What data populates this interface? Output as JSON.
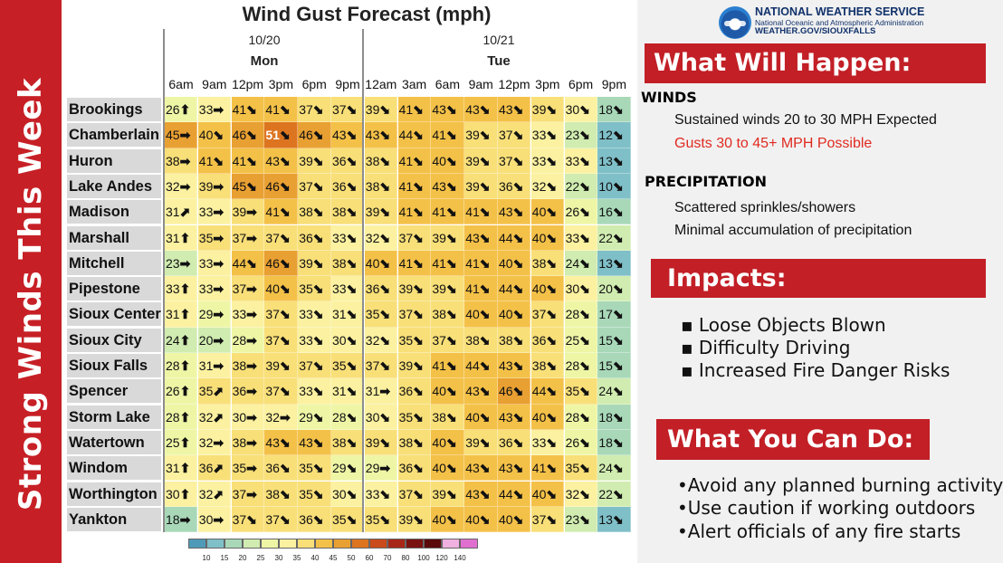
{
  "side_title": "Strong Winds This Week",
  "chart_data": {
    "type": "heatmap",
    "title": "Wind Gust Forecast (mph)",
    "days": [
      {
        "date": "10/20",
        "day": "Mon"
      },
      {
        "date": "10/21",
        "day": "Tue"
      }
    ],
    "times": [
      "6am",
      "9am",
      "12pm",
      "3pm",
      "6pm",
      "9pm",
      "12am",
      "3am",
      "6am",
      "9am",
      "12pm",
      "3pm",
      "6pm",
      "9pm"
    ],
    "rows": [
      {
        "name": "Brookings",
        "values": [
          26,
          33,
          41,
          41,
          37,
          37,
          39,
          41,
          43,
          43,
          43,
          39,
          30,
          18
        ],
        "dirs": [
          "N",
          "E",
          "SE",
          "SE",
          "SE",
          "SE",
          "SE",
          "SE",
          "SE",
          "SE",
          "SE",
          "SE",
          "SE",
          "SE"
        ]
      },
      {
        "name": "Chamberlain",
        "values": [
          45,
          40,
          46,
          51,
          46,
          43,
          43,
          44,
          41,
          39,
          37,
          33,
          23,
          12
        ],
        "dirs": [
          "E",
          "SE",
          "SE",
          "SE",
          "SE",
          "SE",
          "SE",
          "SE",
          "SE",
          "SE",
          "SE",
          "SE",
          "SE",
          "SE"
        ]
      },
      {
        "name": "Huron",
        "values": [
          38,
          41,
          41,
          43,
          39,
          36,
          38,
          41,
          40,
          39,
          37,
          33,
          33,
          13
        ],
        "dirs": [
          "E",
          "SE",
          "SE",
          "SE",
          "SE",
          "SE",
          "SE",
          "SE",
          "SE",
          "SE",
          "SE",
          "SE",
          "SE",
          "SE"
        ]
      },
      {
        "name": "Lake Andes",
        "values": [
          32,
          39,
          45,
          46,
          37,
          36,
          38,
          41,
          43,
          39,
          36,
          32,
          22,
          10
        ],
        "dirs": [
          "E",
          "E",
          "SE",
          "SE",
          "SE",
          "SE",
          "SE",
          "SE",
          "SE",
          "SE",
          "SE",
          "SE",
          "SE",
          "SE"
        ]
      },
      {
        "name": "Madison",
        "values": [
          31,
          33,
          39,
          41,
          38,
          38,
          39,
          41,
          41,
          41,
          43,
          40,
          26,
          16
        ],
        "dirs": [
          "NE",
          "E",
          "E",
          "SE",
          "SE",
          "SE",
          "SE",
          "SE",
          "SE",
          "SE",
          "SE",
          "SE",
          "SE",
          "SE"
        ]
      },
      {
        "name": "Marshall",
        "values": [
          31,
          35,
          37,
          37,
          36,
          33,
          32,
          37,
          39,
          43,
          44,
          40,
          33,
          22
        ],
        "dirs": [
          "N",
          "E",
          "E",
          "SE",
          "SE",
          "SE",
          "SE",
          "SE",
          "SE",
          "SE",
          "SE",
          "SE",
          "SE",
          "SE"
        ]
      },
      {
        "name": "Mitchell",
        "values": [
          23,
          33,
          44,
          46,
          39,
          38,
          40,
          41,
          41,
          41,
          40,
          38,
          24,
          13
        ],
        "dirs": [
          "E",
          "E",
          "SE",
          "SE",
          "SE",
          "SE",
          "SE",
          "SE",
          "SE",
          "SE",
          "SE",
          "SE",
          "SE",
          "SE"
        ]
      },
      {
        "name": "Pipestone",
        "values": [
          33,
          33,
          37,
          40,
          35,
          33,
          36,
          39,
          39,
          41,
          44,
          40,
          30,
          20
        ],
        "dirs": [
          "N",
          "E",
          "E",
          "SE",
          "SE",
          "SE",
          "SE",
          "SE",
          "SE",
          "SE",
          "SE",
          "SE",
          "SE",
          "SE"
        ]
      },
      {
        "name": "Sioux Center",
        "values": [
          31,
          29,
          33,
          37,
          33,
          31,
          35,
          37,
          38,
          40,
          40,
          37,
          28,
          17
        ],
        "dirs": [
          "N",
          "E",
          "E",
          "SE",
          "SE",
          "SE",
          "SE",
          "SE",
          "SE",
          "SE",
          "SE",
          "SE",
          "SE",
          "SE"
        ]
      },
      {
        "name": "Sioux City",
        "values": [
          24,
          20,
          28,
          37,
          33,
          30,
          32,
          35,
          37,
          38,
          38,
          36,
          25,
          15
        ],
        "dirs": [
          "N",
          "E",
          "E",
          "SE",
          "SE",
          "SE",
          "SE",
          "SE",
          "SE",
          "SE",
          "SE",
          "SE",
          "SE",
          "SE"
        ]
      },
      {
        "name": "Sioux Falls",
        "values": [
          28,
          31,
          38,
          39,
          37,
          35,
          37,
          39,
          41,
          44,
          43,
          38,
          28,
          15
        ],
        "dirs": [
          "N",
          "E",
          "E",
          "SE",
          "SE",
          "SE",
          "SE",
          "SE",
          "SE",
          "SE",
          "SE",
          "SE",
          "SE",
          "SE"
        ]
      },
      {
        "name": "Spencer",
        "values": [
          26,
          35,
          36,
          37,
          33,
          31,
          31,
          36,
          40,
          43,
          46,
          44,
          35,
          24
        ],
        "dirs": [
          "N",
          "NE",
          "E",
          "SE",
          "SE",
          "SE",
          "E",
          "SE",
          "SE",
          "SE",
          "SE",
          "SE",
          "SE",
          "SE"
        ]
      },
      {
        "name": "Storm Lake",
        "values": [
          28,
          32,
          30,
          32,
          29,
          28,
          30,
          35,
          38,
          40,
          43,
          40,
          28,
          18
        ],
        "dirs": [
          "N",
          "NE",
          "E",
          "E",
          "SE",
          "SE",
          "SE",
          "SE",
          "SE",
          "SE",
          "SE",
          "SE",
          "SE",
          "SE"
        ]
      },
      {
        "name": "Watertown",
        "values": [
          25,
          32,
          38,
          43,
          43,
          38,
          39,
          38,
          40,
          39,
          36,
          33,
          26,
          18
        ],
        "dirs": [
          "N",
          "E",
          "E",
          "SE",
          "SE",
          "SE",
          "SE",
          "SE",
          "SE",
          "SE",
          "SE",
          "SE",
          "SE",
          "SE"
        ]
      },
      {
        "name": "Windom",
        "values": [
          31,
          36,
          35,
          36,
          35,
          29,
          29,
          36,
          40,
          43,
          43,
          41,
          35,
          24
        ],
        "dirs": [
          "N",
          "NE",
          "E",
          "SE",
          "SE",
          "SE",
          "E",
          "SE",
          "SE",
          "SE",
          "SE",
          "SE",
          "SE",
          "SE"
        ]
      },
      {
        "name": "Worthington",
        "values": [
          30,
          32,
          37,
          38,
          35,
          30,
          33,
          37,
          39,
          43,
          44,
          40,
          32,
          22
        ],
        "dirs": [
          "N",
          "NE",
          "E",
          "SE",
          "SE",
          "SE",
          "SE",
          "SE",
          "SE",
          "SE",
          "SE",
          "SE",
          "SE",
          "SE"
        ]
      },
      {
        "name": "Yankton",
        "values": [
          18,
          30,
          37,
          37,
          36,
          35,
          35,
          39,
          40,
          40,
          40,
          37,
          23,
          13
        ],
        "dirs": [
          "E",
          "E",
          "SE",
          "SE",
          "SE",
          "SE",
          "SE",
          "SE",
          "SE",
          "SE",
          "SE",
          "SE",
          "SE",
          "SE"
        ]
      }
    ],
    "color_scale": {
      "breaks": [
        "10",
        "15",
        "20",
        "25",
        "30",
        "35",
        "40",
        "45",
        "50",
        "60",
        "70",
        "80",
        "100",
        "120",
        "140"
      ],
      "colors": [
        "#4f9ab8",
        "#7fbfc8",
        "#a8d8b8",
        "#d0ecb0",
        "#eef6a6",
        "#fbf1a0",
        "#f8df78",
        "#f4c148",
        "#e9a032",
        "#dd7520",
        "#c94a1a",
        "#a82818",
        "#7a1210",
        "#5a0a0a",
        "#f0b0e0",
        "#e070d0"
      ]
    }
  },
  "nws": {
    "title": "NATIONAL WEATHER SERVICE",
    "subtitle": "National Oceanic and Atmospheric Administration",
    "url": "WEATHER.GOV/SIOUXFALLS"
  },
  "what_will_happen": {
    "heading": "What Will Happen:",
    "winds_label": "WINDS",
    "winds_lines": [
      "Sustained winds 20 to 30 MPH Expected",
      "Gusts 30 to 45+ MPH Possible"
    ],
    "precip_label": "PRECIPITATION",
    "precip_lines": [
      "Scattered sprinkles/showers",
      "Minimal accumulation of precipitation"
    ]
  },
  "impacts": {
    "heading": "Impacts:",
    "items": [
      "▪ Loose Objects Blown",
      "▪ Difficulty Driving",
      "▪ Increased Fire Danger Risks"
    ]
  },
  "what_you_can_do": {
    "heading": "What You Can Do:",
    "items": [
      "•Avoid any planned burning activity",
      "•Use caution if working outdoors",
      "•Alert officials of any fire starts"
    ]
  },
  "colors": {
    "banner_red": "#c62026",
    "box_red": "#c21f26",
    "gust_text_red": "#e02a20"
  }
}
